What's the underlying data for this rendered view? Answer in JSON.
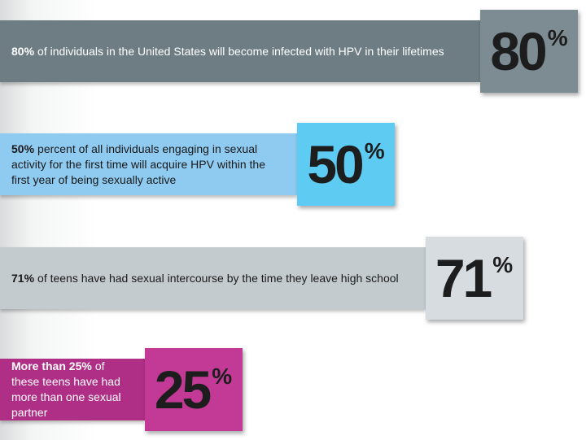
{
  "chart_data": {
    "type": "bar",
    "categories": [
      {
        "lead": "80%",
        "text": "of individuals in the United States will become infected with HPV in their lifetimes"
      },
      {
        "lead": "50%",
        "text": "percent of all individuals engaging in sexual activity for the first time will acquire HPV within the first year of being sexually active"
      },
      {
        "lead": "71%",
        "text": "of teens have had sexual intercourse by the time they leave high school"
      },
      {
        "lead": "More than 25%",
        "text": "of these teens have had more than one sexual partner"
      }
    ],
    "values": [
      80,
      50,
      71,
      25
    ],
    "value_labels": [
      "80%",
      "50%",
      "71%",
      "25%"
    ],
    "colors": [
      "#6e7d84",
      "#8fcaf0",
      "#c3cbcf",
      "#b02f86"
    ],
    "box_colors": [
      "#7d8c93",
      "#5ecbf2",
      "#d6dcdf",
      "#c23a96"
    ],
    "text_colors": [
      "#ffffff",
      "#1a1a1a",
      "#1a1a1a",
      "#ffffff"
    ]
  }
}
